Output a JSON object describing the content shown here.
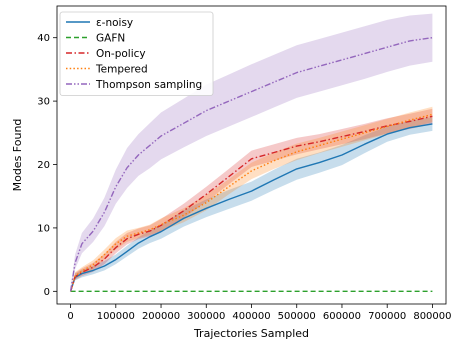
{
  "chart_data": {
    "type": "line",
    "title": "",
    "xlabel": "Trajectories Sampled",
    "ylabel": "Modes Found",
    "xlim": [
      -30000,
      830000
    ],
    "ylim": [
      -2,
      45
    ],
    "x_ticks": [
      0,
      100000,
      200000,
      300000,
      400000,
      500000,
      600000,
      700000,
      800000
    ],
    "x_tick_labels": [
      "0",
      "100000",
      "200000",
      "300000",
      "400000",
      "500000",
      "600000",
      "700000",
      "800000"
    ],
    "y_ticks": [
      0,
      10,
      20,
      30,
      40
    ],
    "y_tick_labels": [
      "0",
      "10",
      "20",
      "30",
      "40"
    ],
    "grid": false,
    "legend_position": "top-left",
    "x": [
      0,
      10000,
      25000,
      50000,
      75000,
      100000,
      125000,
      150000,
      175000,
      200000,
      250000,
      300000,
      350000,
      400000,
      450000,
      500000,
      550000,
      600000,
      650000,
      700000,
      750000,
      800000
    ],
    "series": [
      {
        "name": "ε-noisy",
        "color": "#1f77b4",
        "dash": "solid",
        "values": [
          0,
          2.2,
          2.8,
          3.3,
          4.0,
          5.0,
          6.3,
          7.6,
          8.6,
          9.4,
          11.5,
          13.1,
          14.5,
          15.8,
          17.6,
          19.3,
          20.3,
          21.5,
          23.2,
          24.8,
          25.8,
          26.4
        ],
        "lower": [
          0,
          1.7,
          2.2,
          2.7,
          3.3,
          4.3,
          5.5,
          6.7,
          7.6,
          8.3,
          10.2,
          11.7,
          13.0,
          14.3,
          16.0,
          17.6,
          18.7,
          19.9,
          21.8,
          23.6,
          24.7,
          25.3
        ],
        "upper": [
          0.3,
          2.8,
          3.4,
          4.0,
          4.8,
          5.8,
          7.2,
          8.5,
          9.6,
          10.5,
          12.8,
          14.5,
          16.0,
          17.3,
          19.2,
          20.9,
          21.9,
          23.1,
          24.6,
          26.0,
          26.9,
          27.5
        ]
      },
      {
        "name": "GAFN",
        "color": "#2ca02c",
        "dash": "dashed",
        "values": [
          0,
          0,
          0,
          0,
          0,
          0,
          0,
          0,
          0,
          0,
          0,
          0,
          0,
          0,
          0,
          0,
          0,
          0,
          0,
          0,
          0,
          0
        ]
      },
      {
        "name": "On-policy",
        "color": "#d62728",
        "dash": "dashdot",
        "values": [
          0,
          2.3,
          3.0,
          3.8,
          5.1,
          6.9,
          8.3,
          9.0,
          9.5,
          10.4,
          12.7,
          15.3,
          18.1,
          20.9,
          21.9,
          22.9,
          23.6,
          24.4,
          25.2,
          26.1,
          26.8,
          27.6
        ],
        "lower": [
          0,
          1.8,
          2.4,
          3.1,
          4.3,
          6.0,
          7.4,
          8.2,
          8.7,
          9.4,
          11.6,
          14.1,
          16.9,
          19.6,
          20.6,
          21.6,
          22.4,
          23.2,
          24.0,
          24.9,
          25.6,
          26.4
        ],
        "upper": [
          0.3,
          2.9,
          3.6,
          4.5,
          5.9,
          7.8,
          9.2,
          9.9,
          10.4,
          11.4,
          13.8,
          16.5,
          19.3,
          22.2,
          23.2,
          24.2,
          24.8,
          25.6,
          26.4,
          27.3,
          28.0,
          28.8
        ]
      },
      {
        "name": "Tempered",
        "color": "#ff7f0e",
        "dash": "dotted",
        "values": [
          0,
          2.4,
          3.2,
          4.2,
          5.8,
          7.5,
          8.7,
          9.2,
          9.7,
          10.5,
          12.0,
          14.0,
          16.5,
          19.0,
          20.6,
          22.0,
          23.0,
          24.0,
          25.0,
          26.0,
          27.0,
          27.9
        ],
        "lower": [
          0,
          1.9,
          2.6,
          3.5,
          5.0,
          6.6,
          7.8,
          8.4,
          8.9,
          9.5,
          10.9,
          12.8,
          15.3,
          17.7,
          19.3,
          20.7,
          21.8,
          22.8,
          23.8,
          24.8,
          25.8,
          26.7
        ],
        "upper": [
          0.3,
          3.0,
          3.8,
          4.9,
          6.6,
          8.4,
          9.6,
          10.0,
          10.5,
          11.5,
          13.1,
          15.2,
          17.7,
          20.3,
          21.9,
          23.3,
          24.2,
          25.2,
          26.2,
          27.2,
          28.2,
          29.1
        ]
      },
      {
        "name": "Thompson sampling",
        "color": "#9467bd",
        "dash": "dashdotdot",
        "values": [
          0,
          4.5,
          7.5,
          9.5,
          12.5,
          16.5,
          19.5,
          21.5,
          23.0,
          24.5,
          26.5,
          28.5,
          30.0,
          31.5,
          33.0,
          34.5,
          35.5,
          36.5,
          37.5,
          38.5,
          39.5,
          40.0
        ],
        "lower": [
          0,
          3.5,
          6.0,
          7.8,
          10.3,
          13.8,
          16.3,
          18.2,
          19.4,
          20.8,
          22.7,
          24.5,
          26.0,
          27.5,
          29.0,
          30.5,
          31.5,
          32.5,
          33.5,
          34.6,
          35.6,
          36.2
        ],
        "upper": [
          0.5,
          5.8,
          9.2,
          11.5,
          14.8,
          19.2,
          22.6,
          24.8,
          26.5,
          28.2,
          30.4,
          32.6,
          34.2,
          35.8,
          37.3,
          38.8,
          39.8,
          40.8,
          41.8,
          42.8,
          43.5,
          43.8
        ]
      }
    ]
  }
}
